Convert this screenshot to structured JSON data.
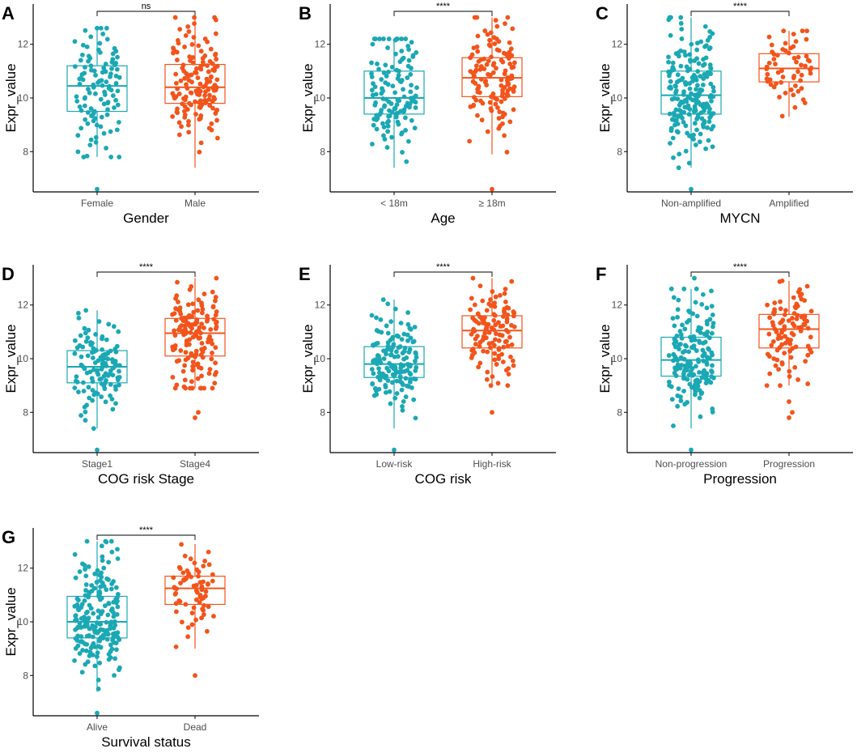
{
  "colors": {
    "group1": "#1aa8b4",
    "group2": "#f2541b",
    "axis": "#000000",
    "box_fill": "#ffffff"
  },
  "chart_data": [
    {
      "panel": "A",
      "type": "box",
      "ylabel": "Expr_value",
      "xlabel": "Gender",
      "categories": [
        "Female",
        "Male"
      ],
      "ylim": [
        6.5,
        13.5
      ],
      "yticks": [
        8,
        10,
        12
      ],
      "significance": "ns",
      "series": [
        {
          "name": "Female",
          "n": 110,
          "whisker_low": 7.8,
          "q1": 9.5,
          "median": 10.45,
          "q3": 11.2,
          "whisker_high": 12.6,
          "outliers": [
            6.6
          ]
        },
        {
          "name": "Male",
          "n": 150,
          "whisker_low": 7.4,
          "q1": 9.8,
          "median": 10.4,
          "q3": 11.25,
          "whisker_high": 13.0,
          "outliers": []
        }
      ]
    },
    {
      "panel": "B",
      "type": "box",
      "ylabel": "Expr_value",
      "xlabel": "Age",
      "categories": [
        "< 18m",
        "≥ 18m"
      ],
      "ylim": [
        6.5,
        13.5
      ],
      "yticks": [
        8,
        10,
        12
      ],
      "significance": "****",
      "series": [
        {
          "name": "< 18m",
          "n": 130,
          "whisker_low": 7.4,
          "q1": 9.4,
          "median": 10.0,
          "q3": 11.0,
          "whisker_high": 12.2,
          "outliers": []
        },
        {
          "name": "≥ 18m",
          "n": 130,
          "whisker_low": 7.9,
          "q1": 10.05,
          "median": 10.75,
          "q3": 11.5,
          "whisker_high": 13.0,
          "outliers": [
            6.6
          ]
        }
      ]
    },
    {
      "panel": "C",
      "type": "box",
      "ylabel": "Expr_value",
      "xlabel": "MYCN",
      "categories": [
        "Non-amplified",
        "Amplified"
      ],
      "ylim": [
        6.5,
        13.5
      ],
      "yticks": [
        8,
        10,
        12
      ],
      "significance": "****",
      "series": [
        {
          "name": "Non-amplified",
          "n": 200,
          "whisker_low": 7.4,
          "q1": 9.4,
          "median": 10.1,
          "q3": 11.0,
          "whisker_high": 13.0,
          "outliers": [
            6.6
          ]
        },
        {
          "name": "Amplified",
          "n": 60,
          "whisker_low": 9.3,
          "q1": 10.6,
          "median": 11.1,
          "q3": 11.65,
          "whisker_high": 12.5,
          "outliers": []
        }
      ]
    },
    {
      "panel": "D",
      "type": "box",
      "ylabel": "Expr_value",
      "xlabel": "COG risk Stage",
      "categories": [
        "Stage1",
        "Stage4"
      ],
      "ylim": [
        6.5,
        13.5
      ],
      "yticks": [
        8,
        10,
        12
      ],
      "significance": "****",
      "series": [
        {
          "name": "Stage1",
          "n": 120,
          "whisker_low": 7.4,
          "q1": 9.1,
          "median": 9.7,
          "q3": 10.3,
          "whisker_high": 11.8,
          "outliers": [
            6.6
          ]
        },
        {
          "name": "Stage4",
          "n": 150,
          "whisker_low": 8.9,
          "q1": 10.1,
          "median": 10.95,
          "q3": 11.5,
          "whisker_high": 13.0,
          "outliers": [
            7.8,
            8.0
          ]
        }
      ]
    },
    {
      "panel": "E",
      "type": "box",
      "ylabel": "Expr_value",
      "xlabel": "COG risk",
      "categories": [
        "Low-risk",
        "High-risk"
      ],
      "ylim": [
        6.5,
        13.5
      ],
      "yticks": [
        8,
        10,
        12
      ],
      "significance": "****",
      "series": [
        {
          "name": "Low-risk",
          "n": 150,
          "whisker_low": 7.4,
          "q1": 9.3,
          "median": 9.8,
          "q3": 10.45,
          "whisker_high": 12.2,
          "outliers": [
            6.6
          ]
        },
        {
          "name": "High-risk",
          "n": 120,
          "whisker_low": 9.0,
          "q1": 10.4,
          "median": 11.05,
          "q3": 11.6,
          "whisker_high": 13.0,
          "outliers": [
            8.0
          ]
        }
      ]
    },
    {
      "panel": "F",
      "type": "box",
      "ylabel": "Expr_value",
      "xlabel": "Progression",
      "categories": [
        "Non-progression",
        "Progression"
      ],
      "ylim": [
        6.5,
        13.5
      ],
      "yticks": [
        8,
        10,
        12
      ],
      "significance": "****",
      "series": [
        {
          "name": "Non-progression",
          "n": 170,
          "whisker_low": 7.4,
          "q1": 9.35,
          "median": 9.95,
          "q3": 10.8,
          "whisker_high": 12.6,
          "outliers": [
            6.6,
            13.0
          ]
        },
        {
          "name": "Progression",
          "n": 100,
          "whisker_low": 9.0,
          "q1": 10.4,
          "median": 11.1,
          "q3": 11.65,
          "whisker_high": 12.9,
          "outliers": [
            7.8,
            8.0,
            8.4
          ]
        }
      ]
    },
    {
      "panel": "G",
      "type": "box",
      "ylabel": "Expr_value",
      "xlabel": "Survival status",
      "categories": [
        "Alive",
        "Dead"
      ],
      "ylim": [
        6.5,
        13.5
      ],
      "yticks": [
        8,
        10,
        12
      ],
      "significance": "****",
      "series": [
        {
          "name": "Alive",
          "n": 200,
          "whisker_low": 7.4,
          "q1": 9.4,
          "median": 10.0,
          "q3": 10.95,
          "whisker_high": 13.0,
          "outliers": [
            6.6
          ]
        },
        {
          "name": "Dead",
          "n": 70,
          "whisker_low": 9.0,
          "q1": 10.65,
          "median": 11.25,
          "q3": 11.7,
          "whisker_high": 12.9,
          "outliers": [
            8.0
          ]
        }
      ]
    }
  ]
}
